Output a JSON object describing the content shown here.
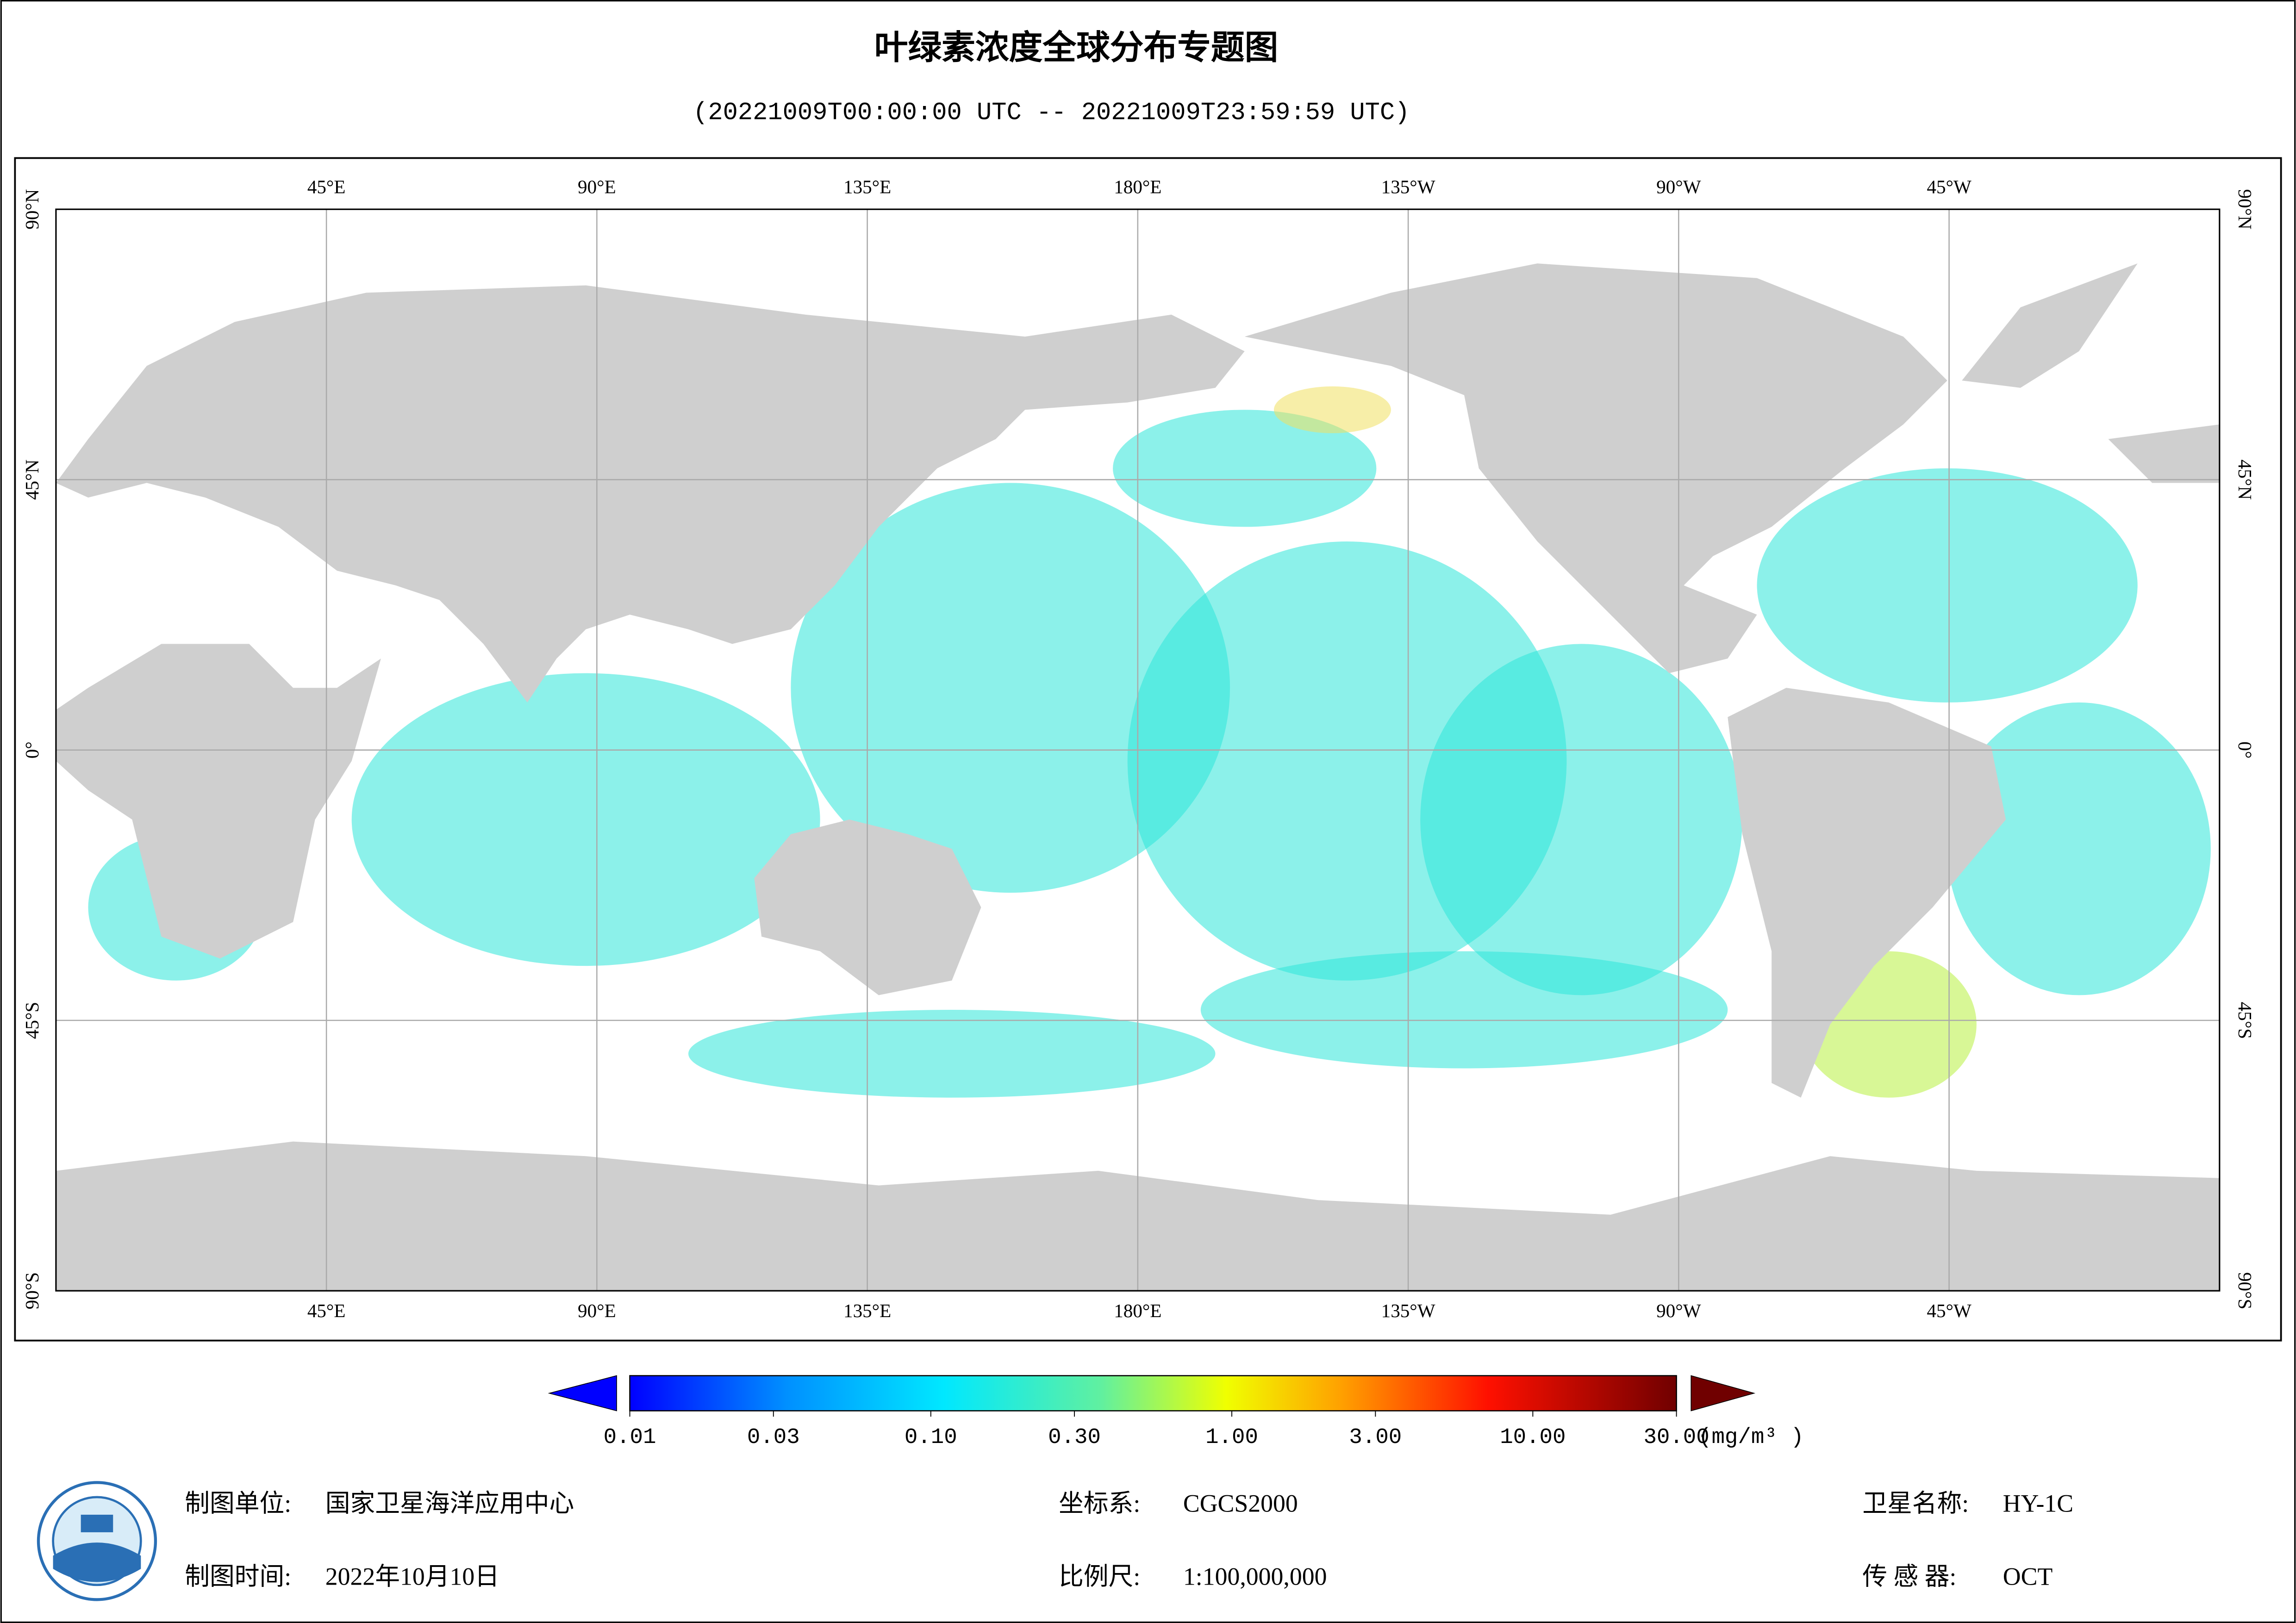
{
  "header": {
    "title": "叶绿素浓度全球分布专题图",
    "subtitle": "(20221009T00:00:00 UTC -- 20221009T23:59:59 UTC)"
  },
  "map": {
    "lon_range": [
      0,
      360
    ],
    "lat_range": [
      -90,
      90
    ],
    "lon_ticks": [
      {
        "value": 45,
        "label": "45°E"
      },
      {
        "value": 90,
        "label": "90°E"
      },
      {
        "value": 135,
        "label": "135°E"
      },
      {
        "value": 180,
        "label": "180°E"
      },
      {
        "value": 225,
        "label": "135°W"
      },
      {
        "value": 270,
        "label": "90°W"
      },
      {
        "value": 315,
        "label": "45°W"
      }
    ],
    "lat_ticks": [
      {
        "value": 90,
        "label": "90°N"
      },
      {
        "value": 45,
        "label": "45°N"
      },
      {
        "value": 0,
        "label": "0°"
      },
      {
        "value": -45,
        "label": "45°S"
      },
      {
        "value": -90,
        "label": "90°S"
      }
    ]
  },
  "colorbar": {
    "range": [
      0.01,
      30
    ],
    "log": true,
    "ticks": [
      {
        "value": 0.01,
        "label": "0.01"
      },
      {
        "value": 0.03,
        "label": "0.03"
      },
      {
        "value": 0.1,
        "label": "0.10"
      },
      {
        "value": 0.3,
        "label": "0.30"
      },
      {
        "value": 1,
        "label": "1.00"
      },
      {
        "value": 3,
        "label": "3.00"
      },
      {
        "value": 10,
        "label": "10.00"
      },
      {
        "value": 30,
        "label": "30.00"
      }
    ],
    "unit": "(mg/m³ )"
  },
  "footer": {
    "left": [
      {
        "label": "制图单位:",
        "value": "国家卫星海洋应用中心"
      },
      {
        "label": "制图时间:",
        "value": "2022年10月10日"
      }
    ],
    "center": [
      {
        "label": "坐标系:",
        "value": "CGCS2000"
      },
      {
        "label": "比例尺:",
        "value": "1:100,000,000"
      }
    ],
    "right": [
      {
        "label": "卫星名称:",
        "value": "HY-1C"
      },
      {
        "label": "传 感 器:",
        "value": "OCT"
      }
    ]
  }
}
